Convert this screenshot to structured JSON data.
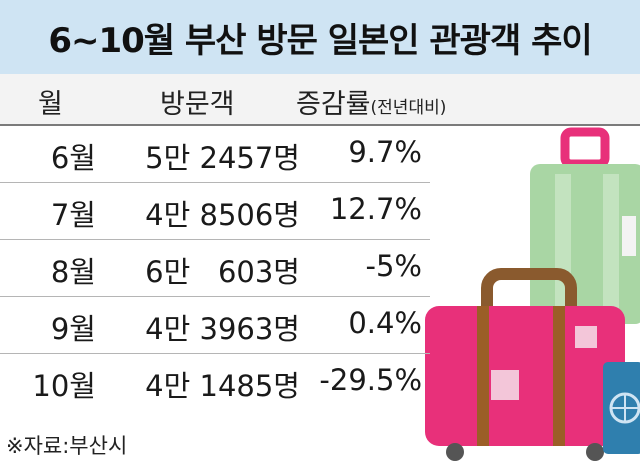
{
  "title": "6~10월 부산 방문 일본인 관광객 추이",
  "chart_data": {
    "type": "table",
    "columns": {
      "month": "월",
      "visitors": "방문객",
      "rate": "증감률",
      "rate_note": "(전년대비)"
    },
    "rows": [
      {
        "month": "6월",
        "visitors": "5만 2457명",
        "rate": "9.7%",
        "visitors_value": 52457,
        "rate_value": 9.7
      },
      {
        "month": "7월",
        "visitors": "4만 8506명",
        "rate": "12.7%",
        "visitors_value": 48506,
        "rate_value": 12.7
      },
      {
        "month": "8월",
        "visitors": "6만   603명",
        "rate": "-5%",
        "visitors_value": 60603,
        "rate_value": -5
      },
      {
        "month": "9월",
        "visitors": "4만 3963명",
        "rate": "0.4%",
        "visitors_value": 43963,
        "rate_value": 0.4
      },
      {
        "month": "10월",
        "visitors": "4만 1485명",
        "rate": "-29.5%",
        "visitors_value": 41485,
        "rate_value": -29.5
      }
    ]
  },
  "source": "※자료:부산시",
  "colors": {
    "title_bg": "#cfe4f3",
    "header_bg": "#f3f3f3",
    "suitcase_pink": "#e8307a",
    "suitcase_green": "#a9d6a4",
    "handle_brown": "#8a5a2e",
    "suitcase_blue": "#2f7fae"
  },
  "icons": [
    "suitcase-illustration"
  ]
}
